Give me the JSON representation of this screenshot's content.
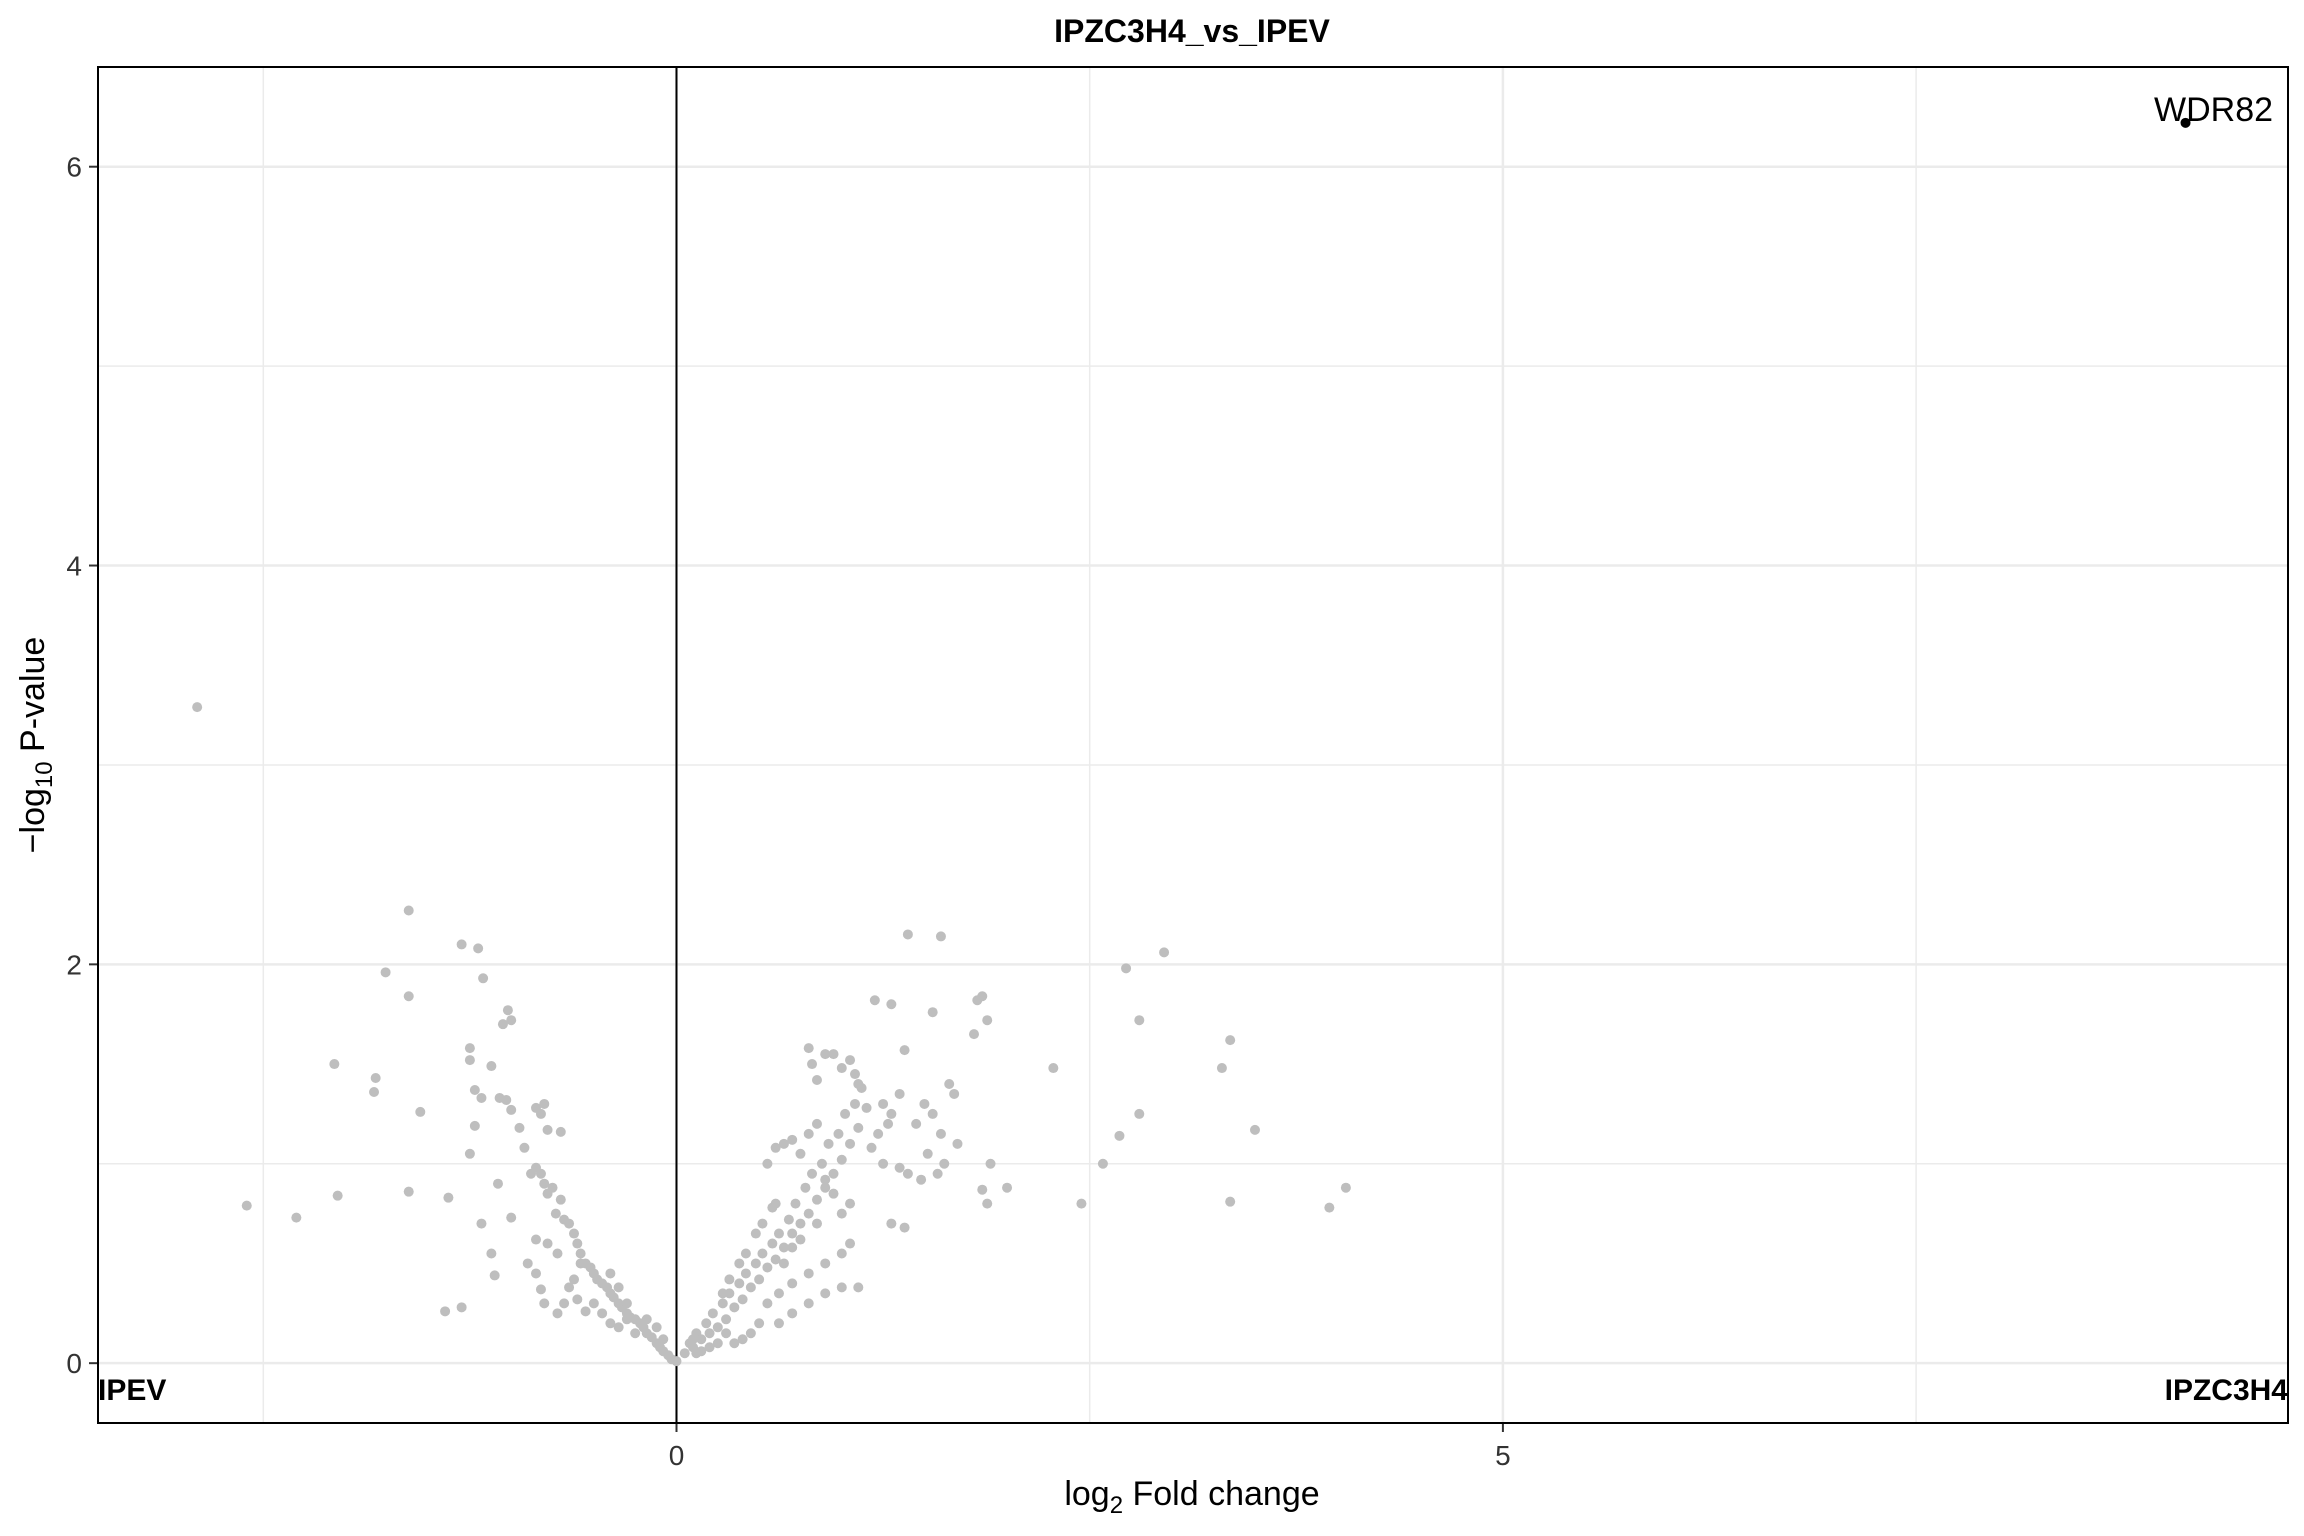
{
  "chart_data": {
    "type": "scatter",
    "title": "IPZC3H4_vs_IPEV",
    "xlabel": {
      "main": "log",
      "sub": "2",
      "rest": " Fold change"
    },
    "ylabel": {
      "prefix": "−log",
      "sub": "10",
      "rest": " P-value"
    },
    "xlim": [
      -3.5,
      9.75
    ],
    "ylim": [
      -0.3,
      6.5
    ],
    "xticks": [
      0,
      5
    ],
    "xtick_labels": [
      "0",
      "5"
    ],
    "yticks": [
      0,
      2,
      4,
      6
    ],
    "ytick_labels": [
      "0",
      "2",
      "4",
      "6"
    ],
    "minor_xgrid": [
      -2.5,
      2.5,
      7.5
    ],
    "minor_ygrid": [
      1,
      3,
      5
    ],
    "vline": 0,
    "grid": true,
    "corner_labels": {
      "left": "IPEV",
      "right": "IPZC3H4"
    },
    "colors": {
      "points": "#bebebe",
      "highlight": "#000000",
      "grid": "#ebebeb",
      "axis": "#000000"
    },
    "highlight": {
      "label": "WDR82",
      "x": 9.13,
      "y": 6.22
    },
    "points": [
      [
        -2.9,
        3.29
      ],
      [
        -2.6,
        0.79
      ],
      [
        -2.3,
        0.73
      ],
      [
        -2.05,
        0.84
      ],
      [
        -2.07,
        1.5
      ],
      [
        -1.83,
        1.36
      ],
      [
        -1.82,
        1.43
      ],
      [
        -1.76,
        1.96
      ],
      [
        -1.62,
        2.27
      ],
      [
        -1.62,
        1.84
      ],
      [
        -1.55,
        1.26
      ],
      [
        -1.4,
        0.26
      ],
      [
        -1.3,
        0.28
      ],
      [
        -1.62,
        0.86
      ],
      [
        -1.38,
        0.83
      ],
      [
        -1.3,
        2.1
      ],
      [
        -1.2,
        2.08
      ],
      [
        -1.17,
        1.93
      ],
      [
        -1.25,
        1.58
      ],
      [
        -1.25,
        1.52
      ],
      [
        -1.22,
        1.37
      ],
      [
        -1.18,
        1.33
      ],
      [
        -1.12,
        1.49
      ],
      [
        -1.05,
        1.7
      ],
      [
        -1.0,
        1.72
      ],
      [
        -1.02,
        1.77
      ],
      [
        -1.07,
        1.33
      ],
      [
        -1.03,
        1.32
      ],
      [
        -1.0,
        1.27
      ],
      [
        -0.95,
        1.18
      ],
      [
        -0.92,
        1.08
      ],
      [
        -0.85,
        1.28
      ],
      [
        -0.8,
        1.3
      ],
      [
        -0.82,
        1.25
      ],
      [
        -0.78,
        1.17
      ],
      [
        -0.7,
        1.16
      ],
      [
        -1.25,
        1.05
      ],
      [
        -1.22,
        1.19
      ],
      [
        -1.08,
        0.9
      ],
      [
        -1.0,
        0.73
      ],
      [
        -1.18,
        0.7
      ],
      [
        -1.12,
        0.55
      ],
      [
        -1.1,
        0.44
      ],
      [
        -0.9,
        0.5
      ],
      [
        -0.82,
        0.37
      ],
      [
        -0.8,
        0.3
      ],
      [
        -0.85,
        0.45
      ],
      [
        -0.85,
        0.62
      ],
      [
        -0.88,
        0.95
      ],
      [
        -0.85,
        0.98
      ],
      [
        -0.82,
        0.95
      ],
      [
        -0.8,
        0.9
      ],
      [
        -0.78,
        0.85
      ],
      [
        -0.75,
        0.88
      ],
      [
        -0.73,
        0.75
      ],
      [
        -0.7,
        0.82
      ],
      [
        -0.68,
        0.72
      ],
      [
        -0.65,
        0.7
      ],
      [
        -0.62,
        0.65
      ],
      [
        -0.6,
        0.6
      ],
      [
        -0.58,
        0.55
      ],
      [
        -0.55,
        0.5
      ],
      [
        -0.52,
        0.48
      ],
      [
        -0.5,
        0.45
      ],
      [
        -0.48,
        0.42
      ],
      [
        -0.45,
        0.4
      ],
      [
        -0.42,
        0.38
      ],
      [
        -0.4,
        0.35
      ],
      [
        -0.38,
        0.33
      ],
      [
        -0.35,
        0.3
      ],
      [
        -0.33,
        0.28
      ],
      [
        -0.3,
        0.25
      ],
      [
        -0.28,
        0.23
      ],
      [
        -0.25,
        0.22
      ],
      [
        -0.22,
        0.2
      ],
      [
        -0.2,
        0.18
      ],
      [
        -0.18,
        0.15
      ],
      [
        -0.15,
        0.13
      ],
      [
        -0.12,
        0.1
      ],
      [
        -0.1,
        0.08
      ],
      [
        -0.08,
        0.06
      ],
      [
        -0.05,
        0.04
      ],
      [
        -0.03,
        0.02
      ],
      [
        0.0,
        0.01
      ],
      [
        -0.65,
        0.38
      ],
      [
        -0.6,
        0.32
      ],
      [
        -0.55,
        0.26
      ],
      [
        -0.5,
        0.3
      ],
      [
        -0.45,
        0.25
      ],
      [
        -0.4,
        0.2
      ],
      [
        -0.35,
        0.18
      ],
      [
        -0.3,
        0.22
      ],
      [
        -0.25,
        0.15
      ],
      [
        -0.72,
        0.25
      ],
      [
        -0.68,
        0.3
      ],
      [
        -0.62,
        0.42
      ],
      [
        -0.58,
        0.5
      ],
      [
        -0.78,
        0.6
      ],
      [
        -0.72,
        0.55
      ],
      [
        -0.4,
        0.45
      ],
      [
        -0.35,
        0.38
      ],
      [
        -0.3,
        0.3
      ],
      [
        -0.18,
        0.22
      ],
      [
        -0.12,
        0.18
      ],
      [
        -0.08,
        0.12
      ],
      [
        0.05,
        0.05
      ],
      [
        0.08,
        0.1
      ],
      [
        0.1,
        0.08
      ],
      [
        0.12,
        0.15
      ],
      [
        0.15,
        0.12
      ],
      [
        0.18,
        0.2
      ],
      [
        0.2,
        0.15
      ],
      [
        0.22,
        0.25
      ],
      [
        0.25,
        0.18
      ],
      [
        0.28,
        0.3
      ],
      [
        0.3,
        0.22
      ],
      [
        0.32,
        0.35
      ],
      [
        0.35,
        0.28
      ],
      [
        0.38,
        0.4
      ],
      [
        0.4,
        0.32
      ],
      [
        0.42,
        0.45
      ],
      [
        0.45,
        0.38
      ],
      [
        0.48,
        0.5
      ],
      [
        0.5,
        0.42
      ],
      [
        0.52,
        0.55
      ],
      [
        0.55,
        0.48
      ],
      [
        0.58,
        0.6
      ],
      [
        0.6,
        0.52
      ],
      [
        0.62,
        0.65
      ],
      [
        0.65,
        0.58
      ],
      [
        0.68,
        0.72
      ],
      [
        0.7,
        0.65
      ],
      [
        0.72,
        0.8
      ],
      [
        0.75,
        0.7
      ],
      [
        0.78,
        0.88
      ],
      [
        0.8,
        0.75
      ],
      [
        0.82,
        0.95
      ],
      [
        0.85,
        0.82
      ],
      [
        0.88,
        1.0
      ],
      [
        0.9,
        0.88
      ],
      [
        0.92,
        1.1
      ],
      [
        0.95,
        0.95
      ],
      [
        0.98,
        1.15
      ],
      [
        1.0,
        1.02
      ],
      [
        1.02,
        1.25
      ],
      [
        1.05,
        1.1
      ],
      [
        1.08,
        1.3
      ],
      [
        1.1,
        1.18
      ],
      [
        1.12,
        1.38
      ],
      [
        1.15,
        1.28
      ],
      [
        0.55,
        1.0
      ],
      [
        0.6,
        1.08
      ],
      [
        0.65,
        1.1
      ],
      [
        0.7,
        1.12
      ],
      [
        0.75,
        1.05
      ],
      [
        0.8,
        1.15
      ],
      [
        0.85,
        1.2
      ],
      [
        0.55,
        0.3
      ],
      [
        0.62,
        0.35
      ],
      [
        0.7,
        0.4
      ],
      [
        0.8,
        0.45
      ],
      [
        0.9,
        0.5
      ],
      [
        1.0,
        0.55
      ],
      [
        1.05,
        0.6
      ],
      [
        1.1,
        0.38
      ],
      [
        1.0,
        0.38
      ],
      [
        0.9,
        0.35
      ],
      [
        0.8,
        0.3
      ],
      [
        0.7,
        0.25
      ],
      [
        0.62,
        0.2
      ],
      [
        0.5,
        0.2
      ],
      [
        0.45,
        0.15
      ],
      [
        0.4,
        0.12
      ],
      [
        0.35,
        0.1
      ],
      [
        0.3,
        0.15
      ],
      [
        0.25,
        0.1
      ],
      [
        0.2,
        0.08
      ],
      [
        0.15,
        0.06
      ],
      [
        0.12,
        0.05
      ],
      [
        0.1,
        0.12
      ],
      [
        0.82,
        1.5
      ],
      [
        0.8,
        1.58
      ],
      [
        0.85,
        1.42
      ],
      [
        0.9,
        1.55
      ],
      [
        0.95,
        1.55
      ],
      [
        1.0,
        1.48
      ],
      [
        1.05,
        1.52
      ],
      [
        1.08,
        1.45
      ],
      [
        1.1,
        1.4
      ],
      [
        1.2,
        1.82
      ],
      [
        1.3,
        1.8
      ],
      [
        1.38,
        1.57
      ],
      [
        1.4,
        2.15
      ],
      [
        1.6,
        2.14
      ],
      [
        1.55,
        1.76
      ],
      [
        1.25,
        1.3
      ],
      [
        1.3,
        1.25
      ],
      [
        1.35,
        1.35
      ],
      [
        1.28,
        1.2
      ],
      [
        1.22,
        1.15
      ],
      [
        1.18,
        1.08
      ],
      [
        1.25,
        1.0
      ],
      [
        1.35,
        0.98
      ],
      [
        1.4,
        0.95
      ],
      [
        1.45,
        1.2
      ],
      [
        1.5,
        1.3
      ],
      [
        1.55,
        1.25
      ],
      [
        1.6,
        1.15
      ],
      [
        1.48,
        0.92
      ],
      [
        1.52,
        1.05
      ],
      [
        1.65,
        1.4
      ],
      [
        1.68,
        1.35
      ],
      [
        1.7,
        1.1
      ],
      [
        1.58,
        0.95
      ],
      [
        1.62,
        1.0
      ],
      [
        1.3,
        0.7
      ],
      [
        1.38,
        0.68
      ],
      [
        1.05,
        0.8
      ],
      [
        1.0,
        0.75
      ],
      [
        0.95,
        0.85
      ],
      [
        0.9,
        0.92
      ],
      [
        0.85,
        0.7
      ],
      [
        0.75,
        0.62
      ],
      [
        0.7,
        0.58
      ],
      [
        0.65,
        0.5
      ],
      [
        1.82,
        1.82
      ],
      [
        1.85,
        1.84
      ],
      [
        1.88,
        1.72
      ],
      [
        1.8,
        1.65
      ],
      [
        1.9,
        1.0
      ],
      [
        1.88,
        0.8
      ],
      [
        2.0,
        0.88
      ],
      [
        1.85,
        0.87
      ],
      [
        2.28,
        1.48
      ],
      [
        2.45,
        0.8
      ],
      [
        2.58,
        1.0
      ],
      [
        2.68,
        1.14
      ],
      [
        2.72,
        1.98
      ],
      [
        2.8,
        1.72
      ],
      [
        2.8,
        1.25
      ],
      [
        2.95,
        2.06
      ],
      [
        3.3,
        1.48
      ],
      [
        3.35,
        1.62
      ],
      [
        3.35,
        0.81
      ],
      [
        3.5,
        1.17
      ],
      [
        3.95,
        0.78
      ],
      [
        4.05,
        0.88
      ],
      [
        0.6,
        0.8
      ],
      [
        0.58,
        0.78
      ],
      [
        0.52,
        0.7
      ],
      [
        0.48,
        0.65
      ],
      [
        0.42,
        0.55
      ],
      [
        0.38,
        0.5
      ],
      [
        0.32,
        0.42
      ],
      [
        0.28,
        0.35
      ]
    ]
  }
}
